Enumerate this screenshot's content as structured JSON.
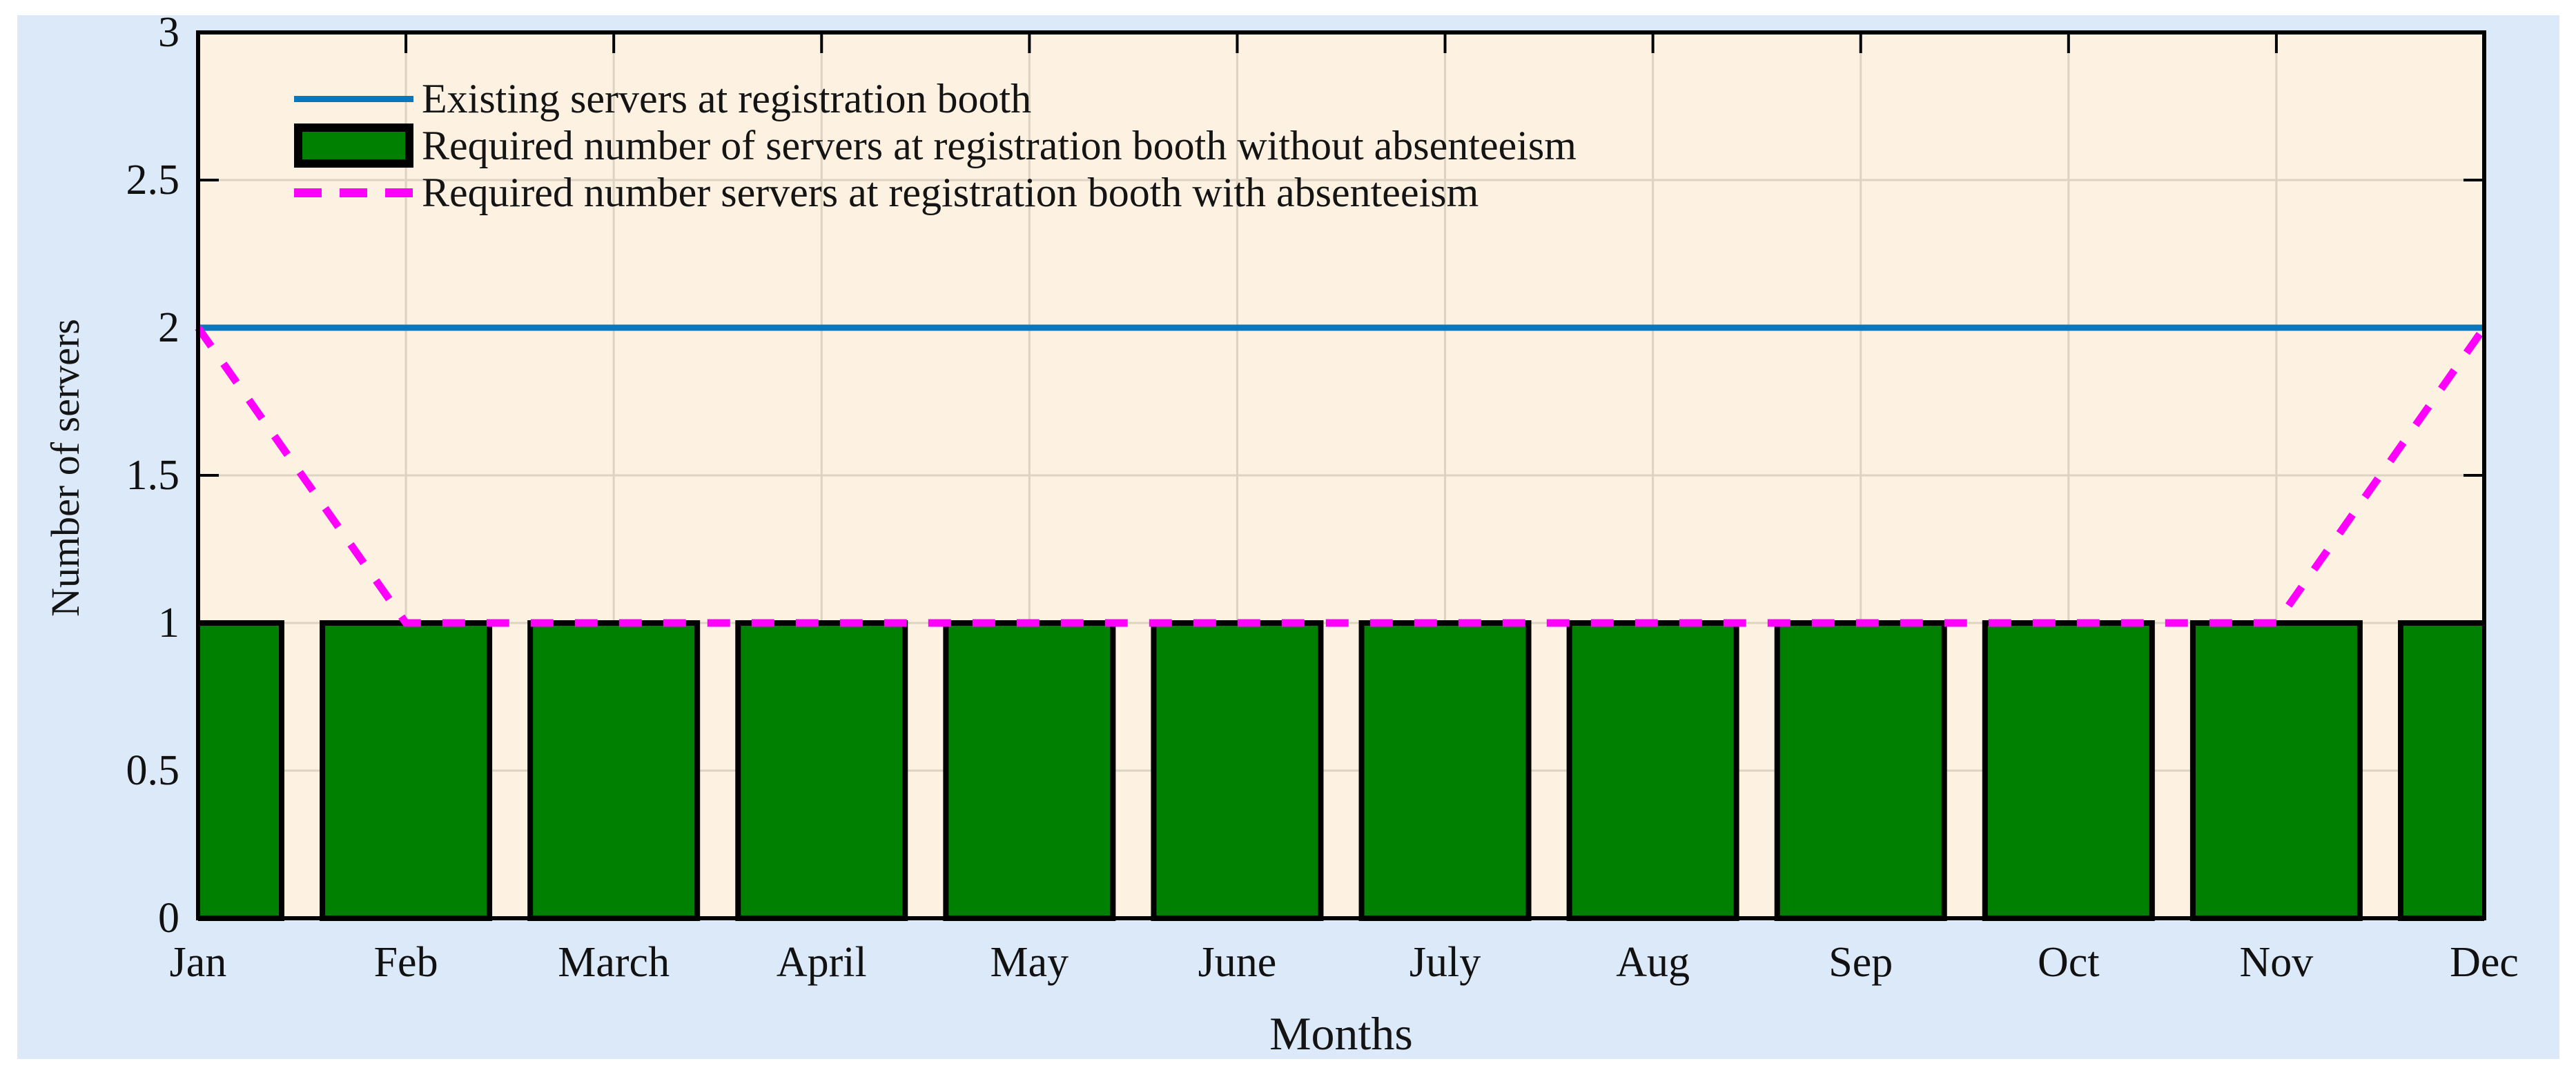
{
  "chart_data": {
    "type": "bar",
    "title": "",
    "xlabel": "Months",
    "ylabel": "Number of servers",
    "categories": [
      "Jan",
      "Feb",
      "March",
      "April",
      "May",
      "June",
      "July",
      "Aug",
      "Sep",
      "Oct",
      "Nov",
      "Dec"
    ],
    "ylim": [
      0,
      3
    ],
    "yticks": [
      0,
      0.5,
      1,
      1.5,
      2,
      2.5,
      3
    ],
    "ytick_labels": [
      "0",
      "0.5",
      "1",
      "1.5",
      "2",
      "2.5",
      "3"
    ],
    "grid": true,
    "legend_position": "top-left-inside",
    "legend_box": false,
    "series": [
      {
        "name": "Existing servers at registration booth",
        "type": "line",
        "linestyle": "solid",
        "color": "#0877bd",
        "values": [
          2,
          2,
          2,
          2,
          2,
          2,
          2,
          2,
          2,
          2,
          2,
          2
        ]
      },
      {
        "name": "Required number of servers at registration booth without absenteeism",
        "type": "bar",
        "fill": "#008000",
        "edge": "#000000",
        "values": [
          1,
          1,
          1,
          1,
          1,
          1,
          1,
          1,
          1,
          1,
          1,
          1
        ]
      },
      {
        "name": "Required number servers at registration booth with absenteeism",
        "type": "line",
        "linestyle": "dashed",
        "color": "#ff00ff",
        "values": [
          2,
          1,
          1,
          1,
          1,
          1,
          1,
          1,
          1,
          1,
          1,
          2
        ]
      }
    ],
    "colors": {
      "panel_bg": "#dbe9f8",
      "plot_bg": "#fdf1e1",
      "grid": "#ddd3c3",
      "spine": "#000000",
      "tick_text": "#141414"
    }
  }
}
